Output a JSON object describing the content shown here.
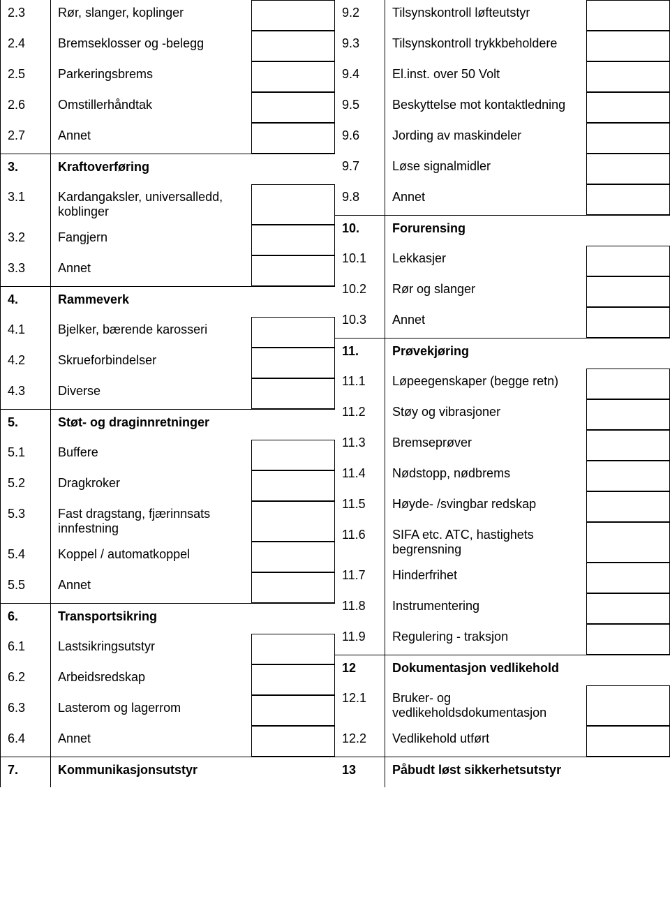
{
  "left": [
    {
      "num": "2.3",
      "label": "Rør, slanger, koplinger",
      "box": true
    },
    {
      "num": "2.4",
      "label": "Bremseklosser og -belegg",
      "box": true
    },
    {
      "num": "2.5",
      "label": "Parkeringsbrems",
      "box": true
    },
    {
      "num": "2.6",
      "label": "Omstillerhåndtak",
      "box": true
    },
    {
      "num": "2.7",
      "label": "Annet",
      "box": true
    },
    {
      "num": "3.",
      "label": "Kraftoverføring",
      "box": false,
      "bold": true,
      "hdr": true
    },
    {
      "num": "3.1",
      "label": "Kardangaksler, universalledd, koblinger",
      "box": true
    },
    {
      "num": "3.2",
      "label": "Fangjern",
      "box": true
    },
    {
      "num": "3.3",
      "label": "Annet",
      "box": true
    },
    {
      "num": "4.",
      "label": "Rammeverk",
      "box": false,
      "bold": true,
      "hdr": true
    },
    {
      "num": "4.1",
      "label": "Bjelker, bærende karosseri",
      "box": true
    },
    {
      "num": "4.2",
      "label": "Skrueforbindelser",
      "box": true
    },
    {
      "num": "4.3",
      "label": "Diverse",
      "box": true
    },
    {
      "num": "5.",
      "label": "Støt- og draginnretninger",
      "box": false,
      "bold": true,
      "hdr": true
    },
    {
      "num": "5.1",
      "label": "Buffere",
      "box": true
    },
    {
      "num": "5.2",
      "label": "Dragkroker",
      "box": true
    },
    {
      "num": "5.3",
      "label": "Fast dragstang, fjærinnsats innfestning",
      "box": true
    },
    {
      "num": "5.4",
      "label": "Koppel / automatkoppel",
      "box": true
    },
    {
      "num": "5.5",
      "label": "Annet",
      "box": true
    },
    {
      "num": "6.",
      "label": "Transportsikring",
      "box": false,
      "bold": true,
      "hdr": true
    },
    {
      "num": "6.1",
      "label": "Lastsikringsutstyr",
      "box": true
    },
    {
      "num": "6.2",
      "label": "Arbeidsredskap",
      "box": true
    },
    {
      "num": "6.3",
      "label": "Lasterom og lagerrom",
      "box": true
    },
    {
      "num": "6.4",
      "label": "Annet",
      "box": true
    },
    {
      "num": "7.",
      "label": "Kommunikasjonsutstyr",
      "box": false,
      "bold": true,
      "hdr": true
    }
  ],
  "right": [
    {
      "num": "9.2",
      "label": "Tilsynskontroll løfteutstyr",
      "box": true
    },
    {
      "num": "9.3",
      "label": "Tilsynskontroll trykkbeholdere",
      "box": true
    },
    {
      "num": "9.4",
      "label": "El.inst. over 50 Volt",
      "box": true
    },
    {
      "num": "9.5",
      "label": "Beskyttelse mot kontaktledning",
      "box": true
    },
    {
      "num": "9.6",
      "label": "Jording av maskindeler",
      "box": true
    },
    {
      "num": "9.7",
      "label": "Løse signalmidler",
      "box": true
    },
    {
      "num": "9.8",
      "label": "Annet",
      "box": true
    },
    {
      "num": "10.",
      "label": "Forurensing",
      "box": false,
      "bold": true,
      "hdr": true
    },
    {
      "num": "10.1",
      "label": "Lekkasjer",
      "box": true
    },
    {
      "num": "10.2",
      "label": "Rør og slanger",
      "box": true
    },
    {
      "num": "10.3",
      "label": "Annet",
      "box": true
    },
    {
      "num": "11.",
      "label": "Prøvekjøring",
      "box": false,
      "bold": true,
      "hdr": true
    },
    {
      "num": "11.1",
      "label": "Løpeegenskaper (begge retn)",
      "box": true
    },
    {
      "num": "11.2",
      "label": "Støy og vibrasjoner",
      "box": true
    },
    {
      "num": "11.3",
      "label": "Bremseprøver",
      "box": true
    },
    {
      "num": "11.4",
      "label": "Nødstopp, nødbrems",
      "box": true
    },
    {
      "num": "11.5",
      "label": "Høyde- /svingbar redskap",
      "box": true
    },
    {
      "num": "11.6",
      "label": "SIFA etc. ATC, hastighets begrensning",
      "box": true
    },
    {
      "num": "11.7",
      "label": "Hinderfrihet",
      "box": true
    },
    {
      "num": "11.8",
      "label": "Instrumentering",
      "box": true
    },
    {
      "num": "11.9",
      "label": "Regulering - traksjon",
      "box": true
    },
    {
      "num": "12",
      "label": "Dokumentasjon vedlikehold",
      "box": false,
      "bold": true,
      "hdr": true
    },
    {
      "num": "12.1",
      "label": "Bruker- og vedlikeholdsdokumentasjon",
      "box": true
    },
    {
      "num": "12.2",
      "label": "Vedlikehold utført",
      "box": true
    },
    {
      "num": "13",
      "label": "Påbudt løst sikkerhetsutstyr",
      "box": false,
      "bold": true,
      "hdr": true
    }
  ]
}
